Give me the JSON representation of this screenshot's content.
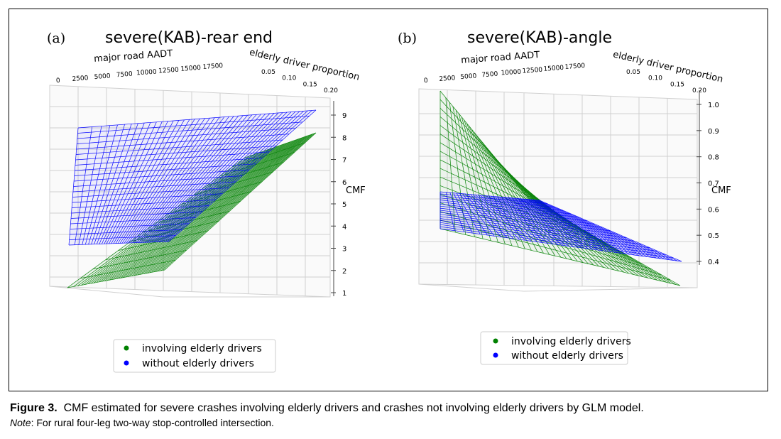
{
  "figure": {
    "caption_label": "Figure 3.",
    "caption_text": "CMF estimated for severe crashes involving elderly drivers and crashes not involving elderly drivers by GLM model.",
    "note_label": "Note",
    "note_text": ": For rural four-leg two-way stop-controlled intersection."
  },
  "chart_data": [
    {
      "type": "surface",
      "panel_label": "(a)",
      "title": "severe(KAB)-rear end",
      "xlabel": "major road AADT",
      "ylabel": "elderly driver proportion",
      "zlabel": "CMF",
      "x_ticks": [
        "0",
        "2500",
        "5000",
        "7500",
        "10000",
        "12500",
        "15000",
        "17500"
      ],
      "y_ticks": [
        "0.05",
        "0.10",
        "0.15",
        "0.20"
      ],
      "z_ticks": [
        "1",
        "2",
        "3",
        "4",
        "5",
        "6",
        "7",
        "8",
        "9"
      ],
      "xlim": [
        0,
        20000
      ],
      "ylim": [
        0,
        0.2
      ],
      "zlim": [
        1,
        9.5
      ],
      "series": [
        {
          "name": "involving elderly drivers",
          "color": "#008000",
          "corner_values": {
            "x0_y0": 1.0,
            "x0_y1": 2.6,
            "x1_y0": 3.4,
            "x1_y1": 8.7
          }
        },
        {
          "name": "without elderly drivers",
          "color": "#0000ff",
          "corner_values": {
            "x0_y0": 3.0,
            "x1_y0": 5.2,
            "x1_y1": 8.6,
            "x0_y1": 9.3
          }
        }
      ],
      "legend": [
        "involving elderly drivers",
        "without elderly drivers"
      ]
    },
    {
      "type": "surface",
      "panel_label": "(b)",
      "title": "severe(KAB)-angle",
      "xlabel": "major road AADT",
      "ylabel": "elderly driver proportion",
      "zlabel": "CMF",
      "x_ticks": [
        "0",
        "2500",
        "5000",
        "7500",
        "10000",
        "12500",
        "15000",
        "17500"
      ],
      "y_ticks": [
        "0.05",
        "0.10",
        "0.15",
        "0.20"
      ],
      "z_ticks": [
        "0.4",
        "0.5",
        "0.6",
        "0.7",
        "0.8",
        "0.9",
        "1.0"
      ],
      "xlim": [
        0,
        20000
      ],
      "ylim": [
        0,
        0.2
      ],
      "zlim": [
        0.3,
        1.0
      ],
      "series": [
        {
          "name": "involving elderly drivers",
          "color": "#008000",
          "corner_values": {
            "x0_y0": 0.96,
            "x0_y1": 0.45,
            "x1_y0": 0.58,
            "x1_y1": 0.34
          }
        },
        {
          "name": "without elderly drivers",
          "color": "#0000ff",
          "corner_values": {
            "x0_y0": 0.62,
            "x1_y0": 0.6,
            "x1_y1": 0.4,
            "x0_y1": 0.51
          }
        }
      ],
      "legend": [
        "involving elderly drivers",
        "without elderly drivers"
      ]
    }
  ]
}
